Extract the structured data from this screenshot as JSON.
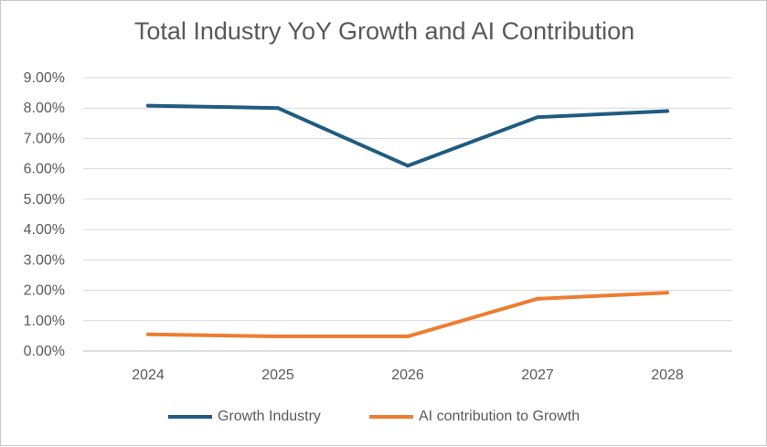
{
  "chart_data": {
    "type": "line",
    "title": "Total Industry YoY Growth and AI Contribution",
    "xlabel": "",
    "ylabel": "",
    "categories": [
      "2024",
      "2025",
      "2026",
      "2027",
      "2028"
    ],
    "ylim": [
      0,
      9
    ],
    "yticks": [
      "0.00%",
      "1.00%",
      "2.00%",
      "3.00%",
      "4.00%",
      "5.00%",
      "6.00%",
      "7.00%",
      "8.00%",
      "9.00%"
    ],
    "grid": true,
    "legend_position": "bottom",
    "series": [
      {
        "name": "Growth Industry",
        "color": "#1f5c80",
        "values": [
          8.08,
          8.0,
          6.1,
          7.7,
          7.9
        ]
      },
      {
        "name": "AI contribution to Growth",
        "color": "#ed7d31",
        "values": [
          0.55,
          0.48,
          0.48,
          1.72,
          1.92
        ]
      }
    ]
  }
}
